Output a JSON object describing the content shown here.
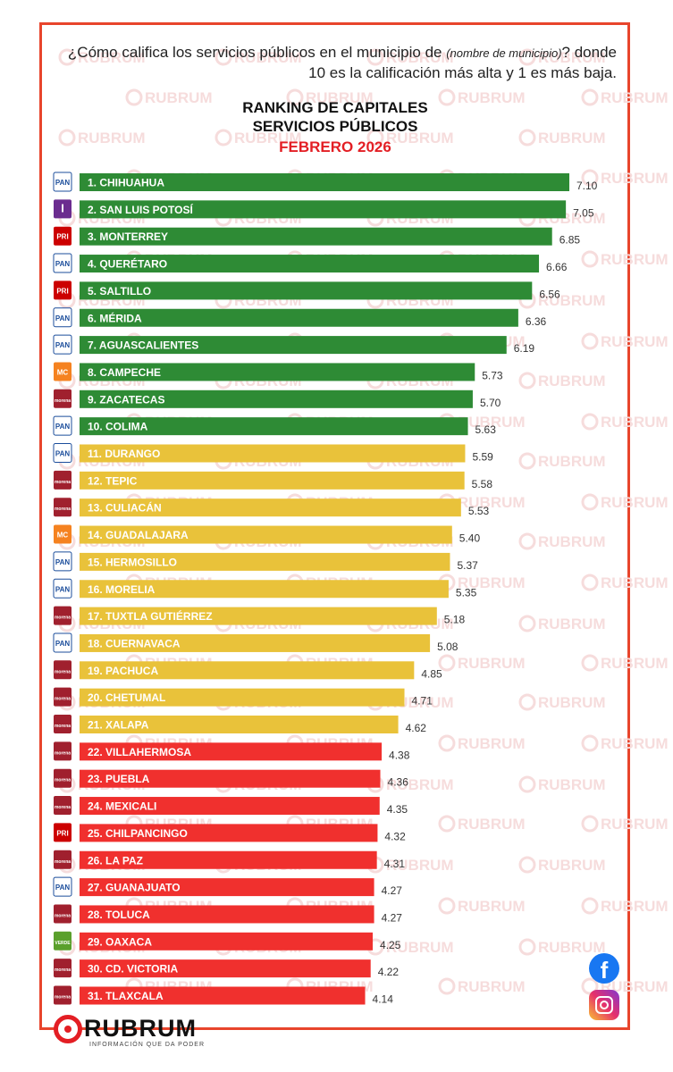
{
  "question": {
    "part1": "¿Cómo califica los servicios públicos en el municipio de ",
    "municipio": "(nombre de municipio)",
    "part2": "? donde 10 es la calificación más alta y 1 es más baja."
  },
  "brand": {
    "name": "RUBRUM",
    "tagline": "INFORMACIÓN QUE DA PODER"
  },
  "colors": {
    "green": "#2e8b35",
    "yellow": "#e9c23a",
    "red": "#f0302e",
    "frame": "#e8452c",
    "accent": "#e31e24"
  },
  "social": {
    "facebook": "f"
  },
  "chart_data": {
    "type": "bar",
    "orientation": "horizontal",
    "title": "RANKING DE CAPITALES",
    "subtitle": "SERVICIOS PÚBLICOS",
    "period": "FEBRERO 2026",
    "categories": [
      "1. CHIHUAHUA",
      "2. SAN LUIS POTOSÍ",
      "3. MONTERREY",
      "4. QUERÉTARO",
      "5. SALTILLO",
      "6. MÉRIDA",
      "7. AGUASCALIENTES",
      "8. CAMPECHE",
      "9. ZACATECAS",
      "10. COLIMA",
      "11. DURANGO",
      "12. TEPIC",
      "13. CULIACÁN",
      "14. GUADALAJARA",
      "15. HERMOSILLO",
      "16. MORELIA",
      "17. TUXTLA GUTIÉRREZ",
      "18. CUERNAVACA",
      "19. PACHUCA",
      "20. CHETUMAL",
      "21. XALAPA",
      "22. VILLAHERMOSA",
      "23. PUEBLA",
      "24. MEXICALI",
      "25. CHILPANCINGO",
      "26. LA PAZ",
      "27. GUANAJUATO",
      "28. TOLUCA",
      "29. OAXACA",
      "30. CD. VICTORIA",
      "31. TLAXCALA"
    ],
    "values": [
      7.1,
      7.05,
      6.85,
      6.66,
      6.56,
      6.36,
      6.19,
      5.73,
      5.7,
      5.63,
      5.59,
      5.58,
      5.53,
      5.4,
      5.37,
      5.35,
      5.18,
      5.08,
      4.85,
      4.71,
      4.62,
      4.38,
      4.36,
      4.35,
      4.32,
      4.31,
      4.27,
      4.27,
      4.25,
      4.22,
      4.14
    ],
    "value_labels": [
      "7.10",
      "7.05",
      "6.85",
      "6.66",
      "6.56",
      "6.36",
      "6.19",
      "5.73",
      "5.70",
      "5.63",
      "5.59",
      "5.58",
      "5.53",
      "5.40",
      "5.37",
      "5.35",
      "5.18",
      "5.08",
      "4.85",
      "4.71",
      "4.62",
      "4.38",
      "4.36",
      "4.35",
      "4.32",
      "4.31",
      "4.27",
      "4.27",
      "4.25",
      "4.22",
      "4.14"
    ],
    "bar_colors": [
      "green",
      "green",
      "green",
      "green",
      "green",
      "green",
      "green",
      "green",
      "green",
      "green",
      "yellow",
      "yellow",
      "yellow",
      "yellow",
      "yellow",
      "yellow",
      "yellow",
      "yellow",
      "yellow",
      "yellow",
      "yellow",
      "red",
      "red",
      "red",
      "red",
      "red",
      "red",
      "red",
      "red",
      "red",
      "red"
    ],
    "parties": [
      "PAN",
      "independiente",
      "PRI",
      "PAN",
      "PRI",
      "PAN",
      "PAN",
      "MC",
      "morena",
      "PAN",
      "PAN",
      "morena",
      "morena",
      "MC",
      "PAN",
      "PAN",
      "morena",
      "PAN",
      "morena",
      "morena",
      "morena",
      "morena",
      "morena",
      "morena",
      "PRI",
      "morena",
      "PAN",
      "morena",
      "VERDE",
      "morena",
      "morena"
    ],
    "party_logo_text": {
      "PAN": "PAN",
      "independiente": "I",
      "PRI": "PRI",
      "MC": "MC",
      "morena": "morena",
      "VERDE": "VERDE"
    },
    "party_colors": {
      "PAN": "#1b4d9b",
      "independiente": "#6b2c8f",
      "PRI": "#cc0000",
      "MC": "#f58220",
      "morena": "#a0202e",
      "VERDE": "#5aa02c"
    },
    "xlim": [
      0,
      7.3
    ],
    "grid": false,
    "legend": "none"
  }
}
